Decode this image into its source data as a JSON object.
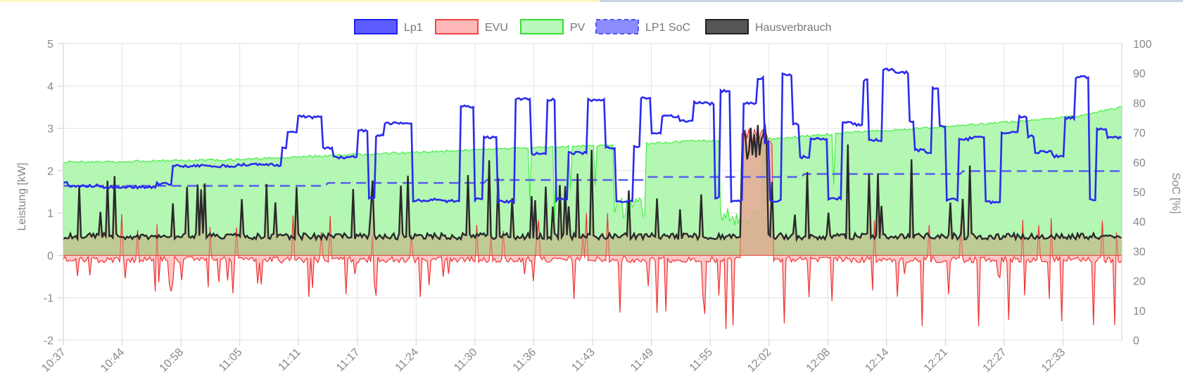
{
  "chart_data": {
    "type": "line",
    "legend": {
      "placement": "top",
      "items": [
        {
          "label": "Lp1",
          "style": "solid",
          "fill": "#4b4bff",
          "stroke": "#2020ee"
        },
        {
          "label": "EVU",
          "style": "solid",
          "fill": "#ffb0b0",
          "stroke": "#ee4444"
        },
        {
          "label": "PV",
          "style": "solid",
          "fill": "#b2f7b2",
          "stroke": "#33dd33"
        },
        {
          "label": "LP1 SoC",
          "style": "dashed",
          "fill": "#8080ff",
          "stroke": "#5555ee"
        },
        {
          "label": "Hausverbrauch",
          "style": "solid",
          "fill": "#444444",
          "stroke": "#222222"
        }
      ]
    },
    "y_left": {
      "label": "Leistung [kW]",
      "min": -2,
      "max": 5,
      "ticks": [
        "5",
        "4",
        "3",
        "2",
        "1",
        "0",
        "-1",
        "-2"
      ]
    },
    "y_right": {
      "label": "SoC [%]",
      "min": 0,
      "max": 100,
      "ticks": [
        "100",
        "90",
        "80",
        "70",
        "60",
        "50",
        "40",
        "30",
        "20",
        "10",
        "0"
      ]
    },
    "x": {
      "tick_labels": [
        "10:37",
        "10:44",
        "10:58",
        "11:05",
        "11:11",
        "11:17",
        "11:24",
        "11:30",
        "11:36",
        "11:43",
        "11:49",
        "11:55",
        "12:02",
        "12:08",
        "12:14",
        "12:21",
        "12:27",
        "12:33"
      ],
      "start": "10:37",
      "end": "12:37"
    },
    "grid": true,
    "colors": {
      "lp1": "#2b2bee",
      "evu": "#ee3333",
      "evu_fill": "#ffb3b3",
      "pv": "#44ee44",
      "pv_fill": "#b3f7b3",
      "soc": "#5b5bee",
      "haus": "#2a2a2a",
      "overlap_fill": "#c8a87a"
    },
    "series": [
      {
        "name": "PV",
        "type": "area",
        "segments": [
          [
            0,
            2.2
          ],
          [
            15,
            2.25
          ],
          [
            30,
            2.4
          ],
          [
            45,
            2.55
          ],
          [
            52,
            2.6
          ],
          [
            60,
            2.7
          ],
          [
            67,
            2.75
          ],
          [
            74,
            2.9
          ],
          [
            81,
            3.0
          ],
          [
            87,
            3.1
          ],
          [
            92,
            3.2
          ],
          [
            96,
            3.3
          ],
          [
            100,
            3.5
          ]
        ]
      },
      {
        "name": "Lp1",
        "type": "line",
        "summary": "stepped between ~1.2 and ~4.5 kW"
      },
      {
        "name": "EVU",
        "type": "area",
        "summary": "mostly -0.3 to 0.5 kW with spikes down to -1.9 and up to 3.0"
      },
      {
        "name": "LP1 SoC",
        "type": "dashed-line",
        "axis": "right",
        "points": [
          [
            0,
            52
          ],
          [
            25,
            53
          ],
          [
            40,
            54
          ],
          [
            55,
            55
          ],
          [
            70,
            56
          ],
          [
            85,
            57
          ],
          [
            100,
            58
          ]
        ]
      },
      {
        "name": "Hausverbrauch",
        "type": "line",
        "summary": "baseline ~0.4-0.6 kW with spikes up to ~3.1 kW"
      }
    ]
  }
}
